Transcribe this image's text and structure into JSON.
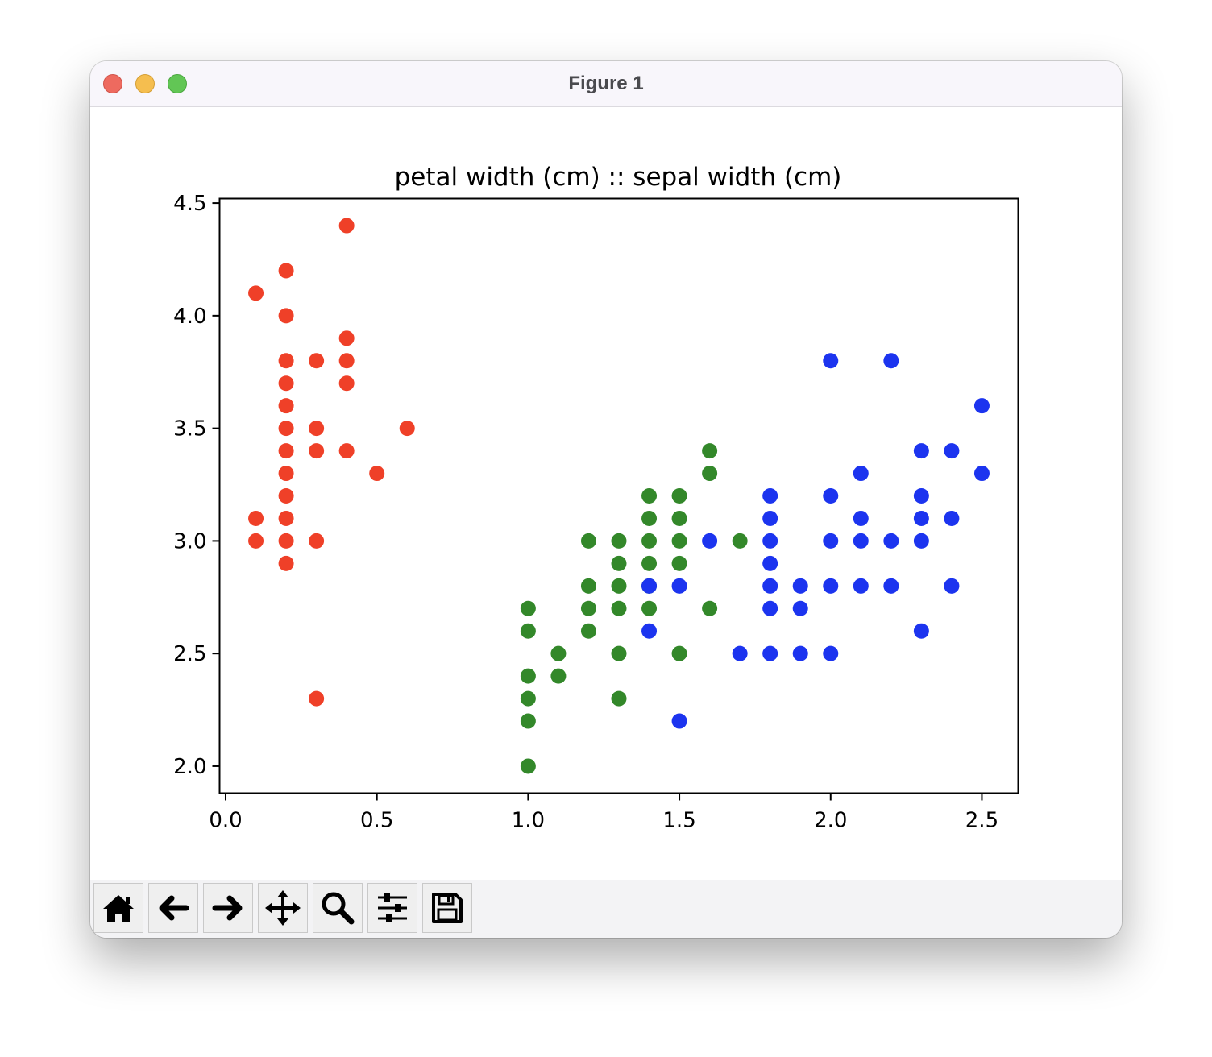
{
  "window": {
    "title": "Figure 1"
  },
  "toolbar": {
    "buttons": [
      {
        "name": "home-button",
        "icon": "home-icon"
      },
      {
        "name": "back-button",
        "icon": "arrow-left-icon"
      },
      {
        "name": "forward-button",
        "icon": "arrow-right-icon"
      },
      {
        "name": "pan-button",
        "icon": "move-icon"
      },
      {
        "name": "zoom-button",
        "icon": "magnifier-icon"
      },
      {
        "name": "configure-subplots-button",
        "icon": "sliders-icon"
      },
      {
        "name": "save-button",
        "icon": "floppy-disk-icon"
      }
    ]
  },
  "chart_data": {
    "type": "scatter",
    "title": "petal width (cm) :: sepal width (cm)",
    "xlabel": "",
    "ylabel": "",
    "xlim": [
      -0.02,
      2.62
    ],
    "ylim": [
      1.88,
      4.52
    ],
    "xticks": [
      "0.0",
      "0.5",
      "1.0",
      "1.5",
      "2.0",
      "2.5"
    ],
    "yticks": [
      "2.0",
      "2.5",
      "3.0",
      "3.5",
      "4.0",
      "4.5"
    ],
    "grid": false,
    "legend": "none",
    "series": [
      {
        "color": "#ef4028",
        "points": [
          [
            0.1,
            4.1
          ],
          [
            0.1,
            3.1
          ],
          [
            0.1,
            3.0
          ],
          [
            0.2,
            4.2
          ],
          [
            0.2,
            4.0
          ],
          [
            0.2,
            3.8
          ],
          [
            0.2,
            3.7
          ],
          [
            0.2,
            3.6
          ],
          [
            0.2,
            3.5
          ],
          [
            0.2,
            3.4
          ],
          [
            0.2,
            3.3
          ],
          [
            0.2,
            3.2
          ],
          [
            0.2,
            3.1
          ],
          [
            0.2,
            3.0
          ],
          [
            0.2,
            2.9
          ],
          [
            0.3,
            3.8
          ],
          [
            0.3,
            3.5
          ],
          [
            0.3,
            3.4
          ],
          [
            0.3,
            3.0
          ],
          [
            0.3,
            2.3
          ],
          [
            0.4,
            4.4
          ],
          [
            0.4,
            3.9
          ],
          [
            0.4,
            3.8
          ],
          [
            0.4,
            3.7
          ],
          [
            0.4,
            3.4
          ],
          [
            0.5,
            3.3
          ],
          [
            0.6,
            3.5
          ]
        ]
      },
      {
        "color": "#33882a",
        "points": [
          [
            1.0,
            2.7
          ],
          [
            1.0,
            2.6
          ],
          [
            1.0,
            2.4
          ],
          [
            1.0,
            2.3
          ],
          [
            1.0,
            2.2
          ],
          [
            1.0,
            2.0
          ],
          [
            1.1,
            2.5
          ],
          [
            1.1,
            2.4
          ],
          [
            1.2,
            3.0
          ],
          [
            1.2,
            2.8
          ],
          [
            1.2,
            2.7
          ],
          [
            1.2,
            2.6
          ],
          [
            1.3,
            3.0
          ],
          [
            1.3,
            2.9
          ],
          [
            1.3,
            2.8
          ],
          [
            1.3,
            2.7
          ],
          [
            1.3,
            2.5
          ],
          [
            1.3,
            2.3
          ],
          [
            1.4,
            3.2
          ],
          [
            1.4,
            3.1
          ],
          [
            1.4,
            3.0
          ],
          [
            1.4,
            2.9
          ],
          [
            1.4,
            2.8
          ],
          [
            1.4,
            2.7
          ],
          [
            1.5,
            3.2
          ],
          [
            1.5,
            3.1
          ],
          [
            1.5,
            3.0
          ],
          [
            1.5,
            2.9
          ],
          [
            1.5,
            2.5
          ],
          [
            1.6,
            3.4
          ],
          [
            1.6,
            3.3
          ],
          [
            1.6,
            2.7
          ],
          [
            1.7,
            3.0
          ]
        ]
      },
      {
        "color": "#1c34ef",
        "points": [
          [
            1.4,
            2.8
          ],
          [
            1.4,
            2.6
          ],
          [
            1.5,
            2.8
          ],
          [
            1.5,
            2.2
          ],
          [
            1.6,
            3.0
          ],
          [
            1.7,
            2.5
          ],
          [
            1.8,
            3.2
          ],
          [
            1.8,
            3.1
          ],
          [
            1.8,
            3.0
          ],
          [
            1.8,
            2.9
          ],
          [
            1.8,
            2.8
          ],
          [
            1.8,
            2.7
          ],
          [
            1.8,
            2.5
          ],
          [
            1.9,
            2.8
          ],
          [
            1.9,
            2.7
          ],
          [
            1.9,
            2.5
          ],
          [
            2.0,
            3.8
          ],
          [
            2.0,
            3.2
          ],
          [
            2.0,
            3.0
          ],
          [
            2.0,
            2.8
          ],
          [
            2.0,
            2.5
          ],
          [
            2.1,
            3.3
          ],
          [
            2.1,
            3.1
          ],
          [
            2.1,
            3.0
          ],
          [
            2.1,
            2.8
          ],
          [
            2.2,
            3.8
          ],
          [
            2.2,
            3.0
          ],
          [
            2.2,
            2.8
          ],
          [
            2.3,
            3.4
          ],
          [
            2.3,
            3.2
          ],
          [
            2.3,
            3.1
          ],
          [
            2.3,
            3.0
          ],
          [
            2.3,
            2.6
          ],
          [
            2.4,
            3.4
          ],
          [
            2.4,
            3.1
          ],
          [
            2.4,
            2.8
          ],
          [
            2.5,
            3.6
          ],
          [
            2.5,
            3.3
          ]
        ]
      }
    ]
  }
}
